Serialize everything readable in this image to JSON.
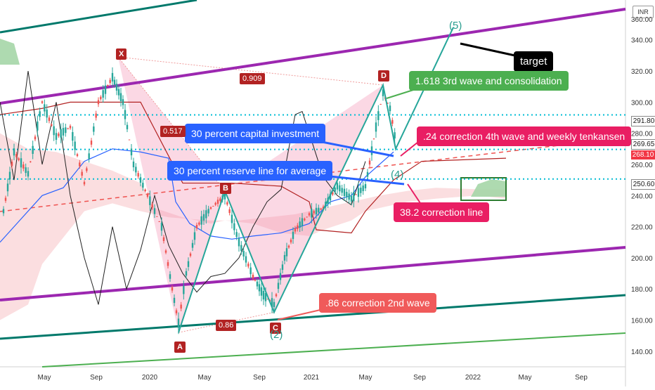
{
  "chart_data": {
    "type": "line",
    "currency": "INR",
    "y_ticks": [
      "340.00",
      "320.00",
      "300.00",
      "280.00",
      "260.00",
      "240.00",
      "220.00",
      "200.00",
      "180.00",
      "160.00",
      "140.00"
    ],
    "y_top_tick": "360.00",
    "ylim": [
      130,
      362
    ],
    "x_ticks": [
      "May",
      "Sep",
      "2020",
      "May",
      "Sep",
      "2021",
      "May",
      "Sep",
      "2022",
      "May",
      "Sep"
    ],
    "price_tags": [
      {
        "value": 291.8,
        "label": "291.80",
        "color": "#ffffff",
        "text": "#1a1a1a"
      },
      {
        "value": 269.65,
        "label": "269.65",
        "color": "#ffffff",
        "text": "#1a1a1a"
      },
      {
        "value": 268.1,
        "label": "268.10",
        "color": "#f23645",
        "text": "#ffffff"
      },
      {
        "value": 250.6,
        "label": "250.60",
        "color": "#ffffff",
        "text": "#1a1a1a"
      }
    ],
    "horizontal_levels": [
      291.8,
      269.65,
      250.6
    ],
    "points": [
      {
        "label": "X",
        "price": 329
      },
      {
        "label": "A",
        "price": 152
      },
      {
        "label": "B",
        "price": 243
      },
      {
        "label": "C",
        "price": 165
      },
      {
        "label": "D",
        "price": 311
      }
    ],
    "ratios": [
      {
        "label": "0.909"
      },
      {
        "label": "0.517"
      },
      {
        "label": "0.86"
      }
    ],
    "wave_labels": [
      {
        "label": "(5)",
        "color": "#2a9d8f"
      },
      {
        "label": "(4)",
        "color": "#2a9d8f"
      },
      {
        "label": "(2)",
        "color": "#2a9d8f"
      }
    ],
    "callouts": [
      {
        "text": "target",
        "color": "#000000"
      },
      {
        "text": "1.618 3rd wave and consolidation",
        "color": "#4caf50"
      },
      {
        "text": ".24 correction 4th wave and weekly tenkansen",
        "color": "#e91e63"
      },
      {
        "text": "30 percent capital investment",
        "color": "#2962ff"
      },
      {
        "text": "30 percent reserve line for average",
        "color": "#2962ff"
      },
      {
        "text": "38.2 correction line",
        "color": "#e91e63"
      },
      {
        "text": ".86 correction 2nd wave",
        "color": "#f05a5a"
      }
    ],
    "colors": {
      "up_candle": "#26a69a",
      "down_candle": "#ef5350",
      "channel_purple": "#9c27b0",
      "channel_teal": "#00796b",
      "cloud_red": "#f8c8cc",
      "cloud_green": "#a5d6a7",
      "dotted_level": "#00bcd4"
    }
  }
}
